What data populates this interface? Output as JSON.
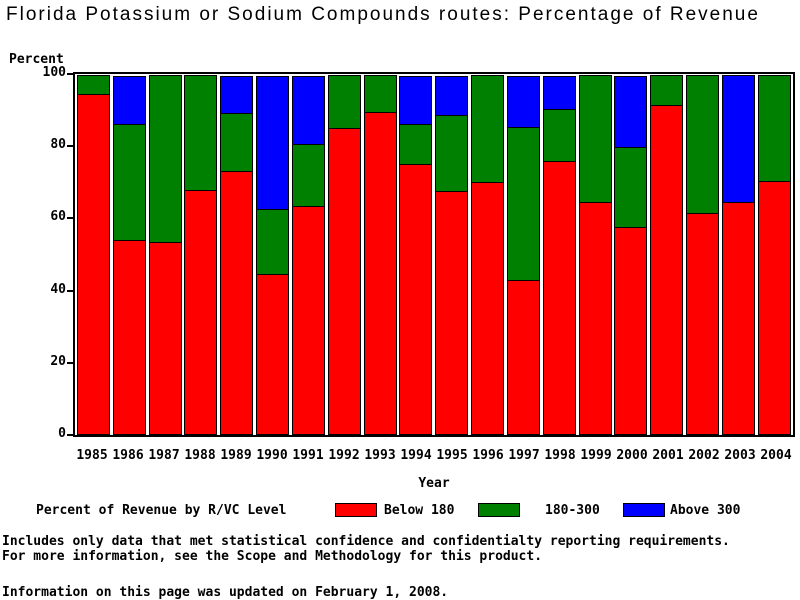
{
  "title": "Florida Potassium or Sodium Compounds routes: Percentage of Revenue",
  "y_axis": {
    "label": "Percent",
    "ticks": [
      0,
      20,
      40,
      60,
      80,
      100
    ]
  },
  "x_axis": {
    "label": "Year"
  },
  "legend": {
    "title": "Percent of Revenue by R/VC Level",
    "items": [
      {
        "label": "Below 180",
        "color": "#ff0000"
      },
      {
        "label": "180-300",
        "color": "#008000"
      },
      {
        "label": "Above 300",
        "color": "#0000ff"
      }
    ]
  },
  "footnotes": {
    "line1": "Includes only data that met statistical confidence and confidentialty reporting requirements.",
    "line2": "For more information, see the Scope and Methodology for this product.",
    "line3": "Information on this page was updated on February 1, 2008."
  },
  "chart_data": {
    "type": "bar",
    "stacked": true,
    "title": "Florida Potassium or Sodium Compounds routes: Percentage of Revenue",
    "xlabel": "Year",
    "ylabel": "Percent",
    "ylim": [
      0,
      100
    ],
    "yticks": [
      0,
      20,
      40,
      60,
      80,
      100
    ],
    "grid": false,
    "legend_position": "bottom",
    "categories": [
      "1985",
      "1986",
      "1987",
      "1988",
      "1989",
      "1990",
      "1991",
      "1992",
      "1993",
      "1994",
      "1995",
      "1996",
      "1997",
      "1998",
      "1999",
      "2000",
      "2001",
      "2002",
      "2003",
      "2004"
    ],
    "series": [
      {
        "name": "Below 180",
        "color": "#ff0000",
        "values": [
          94.5,
          54,
          53.5,
          68,
          73,
          44.5,
          63.5,
          85,
          89.5,
          75,
          67.5,
          70,
          43,
          76,
          64.5,
          57.5,
          91.5,
          61.5,
          64.5,
          70.5
        ]
      },
      {
        "name": "180-300",
        "color": "#008000",
        "values": [
          5.5,
          32.5,
          46.5,
          32,
          16.5,
          18.5,
          17.5,
          15,
          10.5,
          11.5,
          21.5,
          30,
          42.5,
          14.5,
          35.5,
          22.5,
          8.5,
          38.5,
          0,
          29.5
        ]
      },
      {
        "name": "Above 300",
        "color": "#0000ff",
        "values": [
          0,
          13.5,
          0,
          0,
          10.5,
          37,
          19,
          0,
          0,
          13.5,
          11,
          0,
          14.5,
          9.5,
          0,
          20,
          0,
          0,
          35.5,
          0
        ]
      }
    ]
  }
}
